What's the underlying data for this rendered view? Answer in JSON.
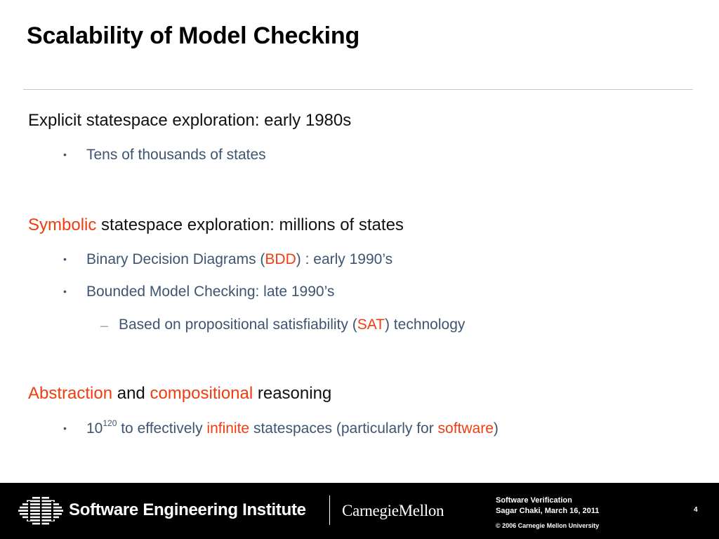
{
  "slide": {
    "title": "Scalability of Model Checking",
    "section1": {
      "heading": "Explicit statespace exploration: early 1980s",
      "bullet1": "Tens of thousands of states"
    },
    "section2": {
      "heading_highlight": "Symbolic",
      "heading_rest": " statespace exploration: millions of states",
      "bullet1_pre": "Binary Decision Diagrams (",
      "bullet1_highlight": "BDD",
      "bullet1_post": ") : early 1990’s",
      "bullet2": "Bounded Model Checking: late 1990’s",
      "sub1_pre": "Based on propositional satisfiability (",
      "sub1_highlight": "SAT",
      "sub1_post": ") technology"
    },
    "section3": {
      "heading_highlight1": "Abstraction",
      "heading_mid": " and ",
      "heading_highlight2": "compositional",
      "heading_rest": " reasoning",
      "bullet1_base": "10",
      "bullet1_exp": "120",
      "bullet1_mid": " to effectively ",
      "bullet1_highlight1": "infinite",
      "bullet1_mid2": " statespaces (particularly for ",
      "bullet1_highlight2": "software",
      "bullet1_post": ")"
    },
    "bullet_glyph": "•",
    "dash_glyph": "—"
  },
  "footer": {
    "org_name": "Software Engineering Institute",
    "university": "CarnegieMellon",
    "course": "Software Verification",
    "author_date": "Sagar Chaki, March 16, 2011",
    "copyright": "© 2006 Carnegie Mellon University",
    "page_number": "4"
  },
  "colors": {
    "highlight": "#f03c0f",
    "body_text": "#111111",
    "bullet_text": "#3e5571",
    "footer_bg": "#000000"
  },
  "icons": {
    "logo": "sei-striped-globe-logo"
  }
}
